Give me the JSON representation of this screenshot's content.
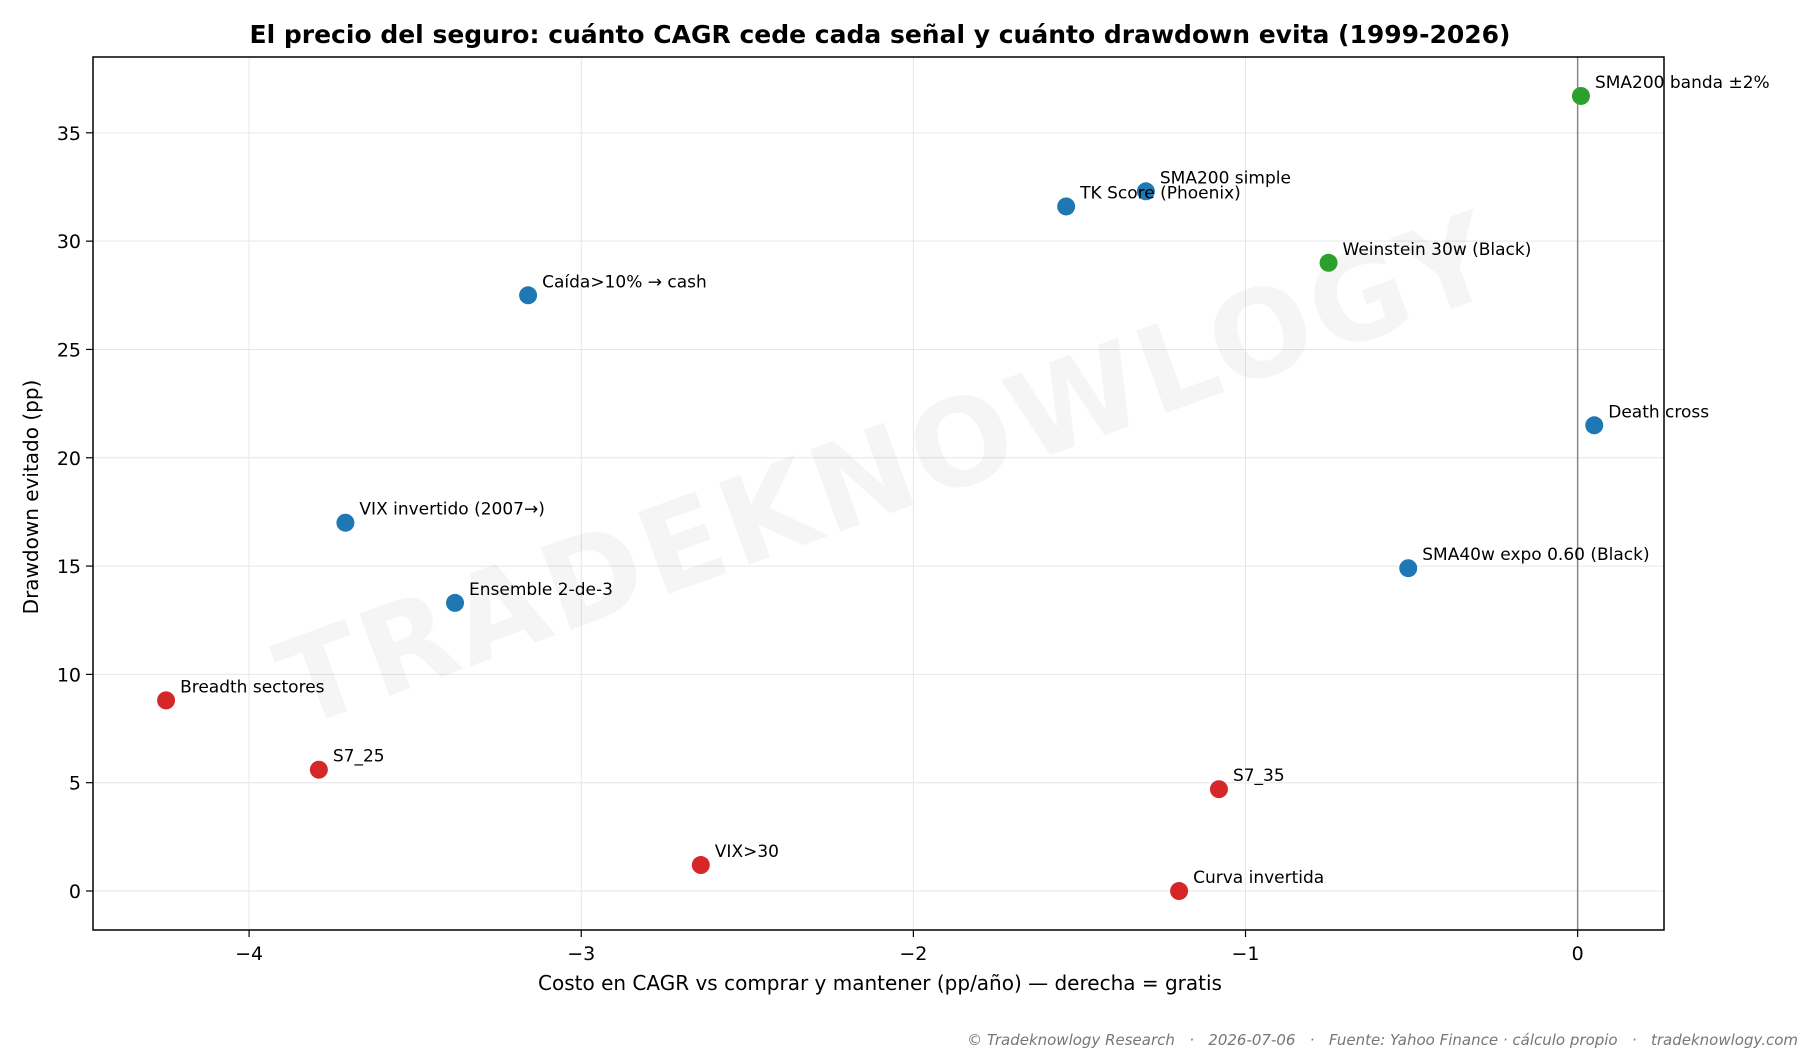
{
  "chart_data": {
    "type": "scatter",
    "title": "El precio del seguro: cuánto CAGR cede cada señal y cuánto drawdown evita (1999-2026)",
    "xlabel": "Costo en CAGR vs comprar y mantener (pp/año) — derecha = gratis",
    "ylabel": "Drawdown evitado (pp)",
    "xlim": [
      -4.47,
      0.26
    ],
    "ylim": [
      -1.8,
      38.5
    ],
    "xticks": [
      -4,
      -3,
      -2,
      -1,
      0
    ],
    "xtick_labels": [
      "−4",
      "−3",
      "−2",
      "−1",
      "0"
    ],
    "yticks": [
      0,
      5,
      10,
      15,
      20,
      25,
      30,
      35
    ],
    "ytick_labels": [
      "0",
      "5",
      "10",
      "15",
      "20",
      "25",
      "30",
      "35"
    ],
    "grid": true,
    "reference_line_x": 0,
    "colors": {
      "blue": "#1f77b4",
      "green": "#2ca02c",
      "red": "#d62728"
    },
    "points": [
      {
        "label": "SMA200 banda ±2%",
        "x": 0.01,
        "y": 36.7,
        "color": "green"
      },
      {
        "label": "SMA200 simple",
        "x": -1.3,
        "y": 32.3,
        "color": "blue"
      },
      {
        "label": "TK Score (Phoenix)",
        "x": -1.54,
        "y": 31.6,
        "color": "blue"
      },
      {
        "label": "Weinstein 30w (Black)",
        "x": -0.75,
        "y": 29.0,
        "color": "green"
      },
      {
        "label": "Caída>10% → cash",
        "x": -3.16,
        "y": 27.5,
        "color": "blue"
      },
      {
        "label": "Death cross",
        "x": 0.05,
        "y": 21.5,
        "color": "blue"
      },
      {
        "label": "VIX invertido (2007→)",
        "x": -3.71,
        "y": 17.0,
        "color": "blue"
      },
      {
        "label": "SMA40w expo 0.60 (Black)",
        "x": -0.51,
        "y": 14.9,
        "color": "blue"
      },
      {
        "label": "Ensemble 2-de-3",
        "x": -3.38,
        "y": 13.3,
        "color": "blue"
      },
      {
        "label": "Breadth sectores",
        "x": -4.25,
        "y": 8.8,
        "color": "red"
      },
      {
        "label": "S7_25",
        "x": -3.79,
        "y": 5.6,
        "color": "red"
      },
      {
        "label": "S7_35",
        "x": -1.08,
        "y": 4.7,
        "color": "red"
      },
      {
        "label": "VIX>30",
        "x": -2.64,
        "y": 1.2,
        "color": "red"
      },
      {
        "label": "Curva invertida",
        "x": -1.2,
        "y": 0.0,
        "color": "red"
      }
    ]
  },
  "watermark": "TRADEKNOWLOGY",
  "footer": "© Tradeknowlogy Research   ·   2026-07-06   ·   Fuente: Yahoo Finance · cálculo propio   ·   tradeknowlogy.com"
}
